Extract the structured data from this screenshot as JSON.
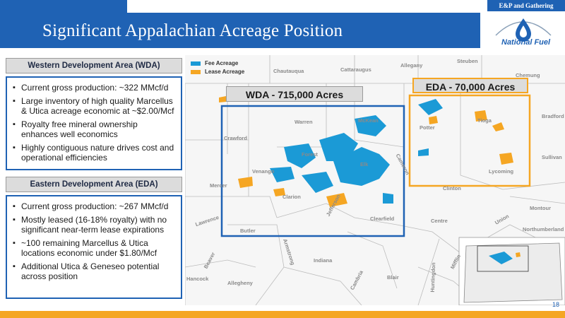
{
  "header": {
    "section_tag": "E&P and Gathering",
    "title": "Significant Appalachian Acreage Position",
    "logo_text": "National Fuel"
  },
  "wda": {
    "heading": "Western Development Area (WDA)",
    "bullets": [
      "Current gross production: ~322 MMcf/d",
      "Large inventory of high quality Marcellus & Utica acreage economic at ~$2.00/Mcf",
      "Royalty free mineral ownership enhances well economics",
      "Highly contiguous nature drives cost and operational efficiencies"
    ]
  },
  "eda": {
    "heading": "Eastern Development Area (EDA)",
    "bullets": [
      "Current gross production: ~267 MMcf/d",
      "Mostly leased (16-18% royalty) with no significant near-term lease expirations",
      "~100 remaining Marcellus & Utica locations economic under $1.80/Mcf",
      "Additional Utica & Geneseo potential across position"
    ]
  },
  "map": {
    "legend": [
      {
        "label": "Fee Acreage",
        "color": "#1b9ad6"
      },
      {
        "label": "Lease Acreage",
        "color": "#f5a623"
      }
    ],
    "wda_label": "WDA - 715,000 Acres",
    "eda_label": "EDA - 70,000 Acres",
    "counties": [
      "Steuben",
      "Allegany",
      "Cattaraugus",
      "Chautauqua",
      "Chemung",
      "Bradford",
      "Sullivan",
      "McKean",
      "Potter",
      "Tioga",
      "Warren",
      "Crawford",
      "Forest",
      "Elk",
      "Cameron",
      "Lycoming",
      "Venango",
      "Mercer",
      "Clarion",
      "Jefferson",
      "Clearfield",
      "Clinton",
      "Lawrence",
      "Butler",
      "Centre",
      "Union",
      "Montour",
      "Northumberland",
      "Armstrong",
      "Indiana",
      "Beaver",
      "Allegheny",
      "Blair",
      "Cambria",
      "Huntingdon",
      "Mifflin",
      "Hancock"
    ]
  },
  "colors": {
    "primary_blue": "#1f62b4",
    "accent_orange": "#f5a623",
    "fee_blue": "#1b9ad6"
  },
  "footer": {
    "page_number": "18"
  }
}
